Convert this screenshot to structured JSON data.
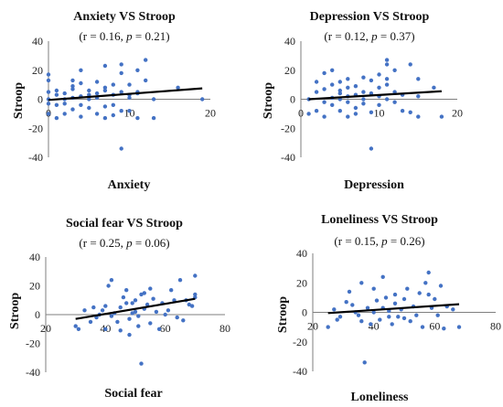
{
  "chart_data": [
    {
      "type": "scatter",
      "title": "Anxiety VS Stroop",
      "subtitle": "(r = 0.16, p = 0.21)",
      "xlabel": "Anxiety",
      "ylabel": "Stroop",
      "xlim": [
        0,
        20
      ],
      "ylim": [
        -40,
        40
      ],
      "xticks": [
        0,
        10,
        20
      ],
      "yticks": [
        -40,
        -20,
        0,
        20,
        40
      ],
      "trendline": {
        "x": [
          0,
          19
        ],
        "y": [
          -0.5,
          7.5
        ]
      },
      "points": [
        [
          0,
          0
        ],
        [
          0,
          17
        ],
        [
          0,
          13
        ],
        [
          0,
          5
        ],
        [
          0,
          -3
        ],
        [
          0,
          -10
        ],
        [
          1,
          6
        ],
        [
          1,
          3
        ],
        [
          1,
          -4
        ],
        [
          1,
          -13
        ],
        [
          2,
          4
        ],
        [
          2,
          0
        ],
        [
          2,
          -10
        ],
        [
          2,
          -3
        ],
        [
          3,
          13
        ],
        [
          3,
          7
        ],
        [
          3,
          1
        ],
        [
          3,
          -7
        ],
        [
          3,
          9
        ],
        [
          4,
          20
        ],
        [
          4,
          11
        ],
        [
          4,
          2
        ],
        [
          4,
          -4
        ],
        [
          4,
          -12
        ],
        [
          5,
          6
        ],
        [
          5,
          0
        ],
        [
          5,
          3
        ],
        [
          5,
          -6
        ],
        [
          6,
          4
        ],
        [
          6,
          1
        ],
        [
          6,
          -10
        ],
        [
          6,
          12
        ],
        [
          7,
          23
        ],
        [
          7,
          6
        ],
        [
          7,
          -5
        ],
        [
          7,
          -13
        ],
        [
          7,
          8
        ],
        [
          8,
          -11
        ],
        [
          8,
          3
        ],
        [
          8,
          10
        ],
        [
          8,
          -4
        ],
        [
          9,
          24
        ],
        [
          9,
          18
        ],
        [
          9,
          5
        ],
        [
          9,
          -34
        ],
        [
          9,
          -8
        ],
        [
          10,
          -8
        ],
        [
          10,
          3
        ],
        [
          10,
          10
        ],
        [
          10,
          1
        ],
        [
          11,
          20
        ],
        [
          11,
          5
        ],
        [
          11,
          -13
        ],
        [
          11,
          4
        ],
        [
          12,
          27
        ],
        [
          12,
          13
        ],
        [
          13,
          -13
        ],
        [
          13,
          0
        ],
        [
          16,
          8
        ],
        [
          19,
          0
        ]
      ]
    },
    {
      "type": "scatter",
      "title": "Depression VS Stroop",
      "subtitle": "(r = 0.12, p = 0.37)",
      "xlabel": "Depression",
      "ylabel": "Stroop",
      "xlim": [
        0,
        20
      ],
      "ylim": [
        -40,
        40
      ],
      "xticks": [
        0,
        10,
        20
      ],
      "yticks": [
        -40,
        -20,
        0,
        20,
        40
      ],
      "trendline": {
        "x": [
          1,
          18
        ],
        "y": [
          0,
          5.5
        ]
      },
      "points": [
        [
          1,
          -10
        ],
        [
          1,
          0
        ],
        [
          2,
          5
        ],
        [
          2,
          -8
        ],
        [
          2,
          12
        ],
        [
          3,
          18
        ],
        [
          3,
          7
        ],
        [
          3,
          -2
        ],
        [
          3,
          -12
        ],
        [
          4,
          20
        ],
        [
          4,
          10
        ],
        [
          4,
          1
        ],
        [
          4,
          -4
        ],
        [
          5,
          12
        ],
        [
          5,
          4
        ],
        [
          5,
          0
        ],
        [
          5,
          -8
        ],
        [
          5,
          6
        ],
        [
          6,
          14
        ],
        [
          6,
          2
        ],
        [
          6,
          -2
        ],
        [
          6,
          -12
        ],
        [
          6,
          8
        ],
        [
          7,
          9
        ],
        [
          7,
          3
        ],
        [
          7,
          -6
        ],
        [
          7,
          -10
        ],
        [
          8,
          15
        ],
        [
          8,
          5
        ],
        [
          8,
          0
        ],
        [
          8,
          -3
        ],
        [
          9,
          -34
        ],
        [
          9,
          13
        ],
        [
          9,
          4
        ],
        [
          9,
          -9
        ],
        [
          10,
          17
        ],
        [
          10,
          8
        ],
        [
          10,
          2
        ],
        [
          10,
          -4
        ],
        [
          11,
          27
        ],
        [
          11,
          24
        ],
        [
          11,
          14
        ],
        [
          11,
          10
        ],
        [
          11,
          0
        ],
        [
          12,
          5
        ],
        [
          12,
          -2
        ],
        [
          13,
          3
        ],
        [
          13,
          -8
        ],
        [
          14,
          24
        ],
        [
          14,
          -9
        ],
        [
          15,
          14
        ],
        [
          15,
          -12
        ],
        [
          15,
          2
        ],
        [
          17,
          8
        ],
        [
          18,
          -12
        ],
        [
          12,
          20
        ]
      ]
    },
    {
      "type": "scatter",
      "title": "Social fear VS Stroop",
      "subtitle": "(r = 0.25, p = 0.06)",
      "xlabel": "Social fear",
      "ylabel": "Stroop",
      "xlim": [
        20,
        80
      ],
      "ylim": [
        -40,
        40
      ],
      "xticks": [
        20,
        40,
        60,
        80
      ],
      "yticks": [
        -40,
        -20,
        0,
        20,
        40
      ],
      "trendline": {
        "x": [
          30,
          70
        ],
        "y": [
          -3,
          11
        ]
      },
      "points": [
        [
          30,
          -8
        ],
        [
          31,
          -10
        ],
        [
          33,
          3
        ],
        [
          35,
          -5
        ],
        [
          36,
          5
        ],
        [
          37,
          -2
        ],
        [
          38,
          0
        ],
        [
          39,
          3
        ],
        [
          40,
          -10
        ],
        [
          40,
          6
        ],
        [
          41,
          20
        ],
        [
          42,
          24
        ],
        [
          42,
          -1
        ],
        [
          43,
          1
        ],
        [
          44,
          -5
        ],
        [
          45,
          5
        ],
        [
          45,
          -11
        ],
        [
          46,
          12
        ],
        [
          47,
          8
        ],
        [
          47,
          17
        ],
        [
          48,
          -3
        ],
        [
          48,
          -14
        ],
        [
          49,
          8
        ],
        [
          49,
          1
        ],
        [
          50,
          2
        ],
        [
          50,
          10
        ],
        [
          51,
          -1
        ],
        [
          51,
          -8
        ],
        [
          52,
          -34
        ],
        [
          52,
          14
        ],
        [
          53,
          4
        ],
        [
          53,
          15
        ],
        [
          54,
          7
        ],
        [
          55,
          -6
        ],
        [
          55,
          18
        ],
        [
          56,
          11
        ],
        [
          57,
          2
        ],
        [
          58,
          -10
        ],
        [
          59,
          8
        ],
        [
          60,
          0
        ],
        [
          61,
          3
        ],
        [
          62,
          17
        ],
        [
          63,
          10
        ],
        [
          64,
          -2
        ],
        [
          65,
          24
        ],
        [
          66,
          -4
        ],
        [
          67,
          10
        ],
        [
          68,
          7
        ],
        [
          69,
          6
        ],
        [
          70,
          27
        ],
        [
          70,
          12
        ],
        [
          70,
          14
        ]
      ]
    },
    {
      "type": "scatter",
      "title": "Loneliness VS Stroop",
      "subtitle": "(r = 0.15, p = 0.26)",
      "xlabel": "Loneliness",
      "ylabel": "Stroop",
      "xlim": [
        20,
        80
      ],
      "ylim": [
        -40,
        40
      ],
      "xticks": [
        20,
        40,
        60,
        80
      ],
      "yticks": [
        -40,
        -20,
        0,
        20,
        40
      ],
      "trendline": {
        "x": [
          25,
          68
        ],
        "y": [
          -0.5,
          5.5
        ]
      },
      "points": [
        [
          25,
          -10
        ],
        [
          27,
          2
        ],
        [
          28,
          -5
        ],
        [
          29,
          -3
        ],
        [
          31,
          7
        ],
        [
          32,
          14
        ],
        [
          33,
          5
        ],
        [
          34,
          0
        ],
        [
          35,
          -2
        ],
        [
          36,
          20
        ],
        [
          36,
          -6
        ],
        [
          37,
          -34
        ],
        [
          38,
          3
        ],
        [
          39,
          -8
        ],
        [
          40,
          16
        ],
        [
          40,
          0
        ],
        [
          41,
          8
        ],
        [
          42,
          -5
        ],
        [
          43,
          24
        ],
        [
          43,
          3
        ],
        [
          44,
          10
        ],
        [
          45,
          1
        ],
        [
          45,
          -3
        ],
        [
          46,
          -8
        ],
        [
          47,
          12
        ],
        [
          47,
          6
        ],
        [
          48,
          -3
        ],
        [
          49,
          2
        ],
        [
          50,
          -4
        ],
        [
          50,
          9
        ],
        [
          51,
          16
        ],
        [
          52,
          -6
        ],
        [
          53,
          4
        ],
        [
          54,
          -2
        ],
        [
          55,
          13
        ],
        [
          56,
          -10
        ],
        [
          57,
          20
        ],
        [
          58,
          27
        ],
        [
          58,
          12
        ],
        [
          59,
          3
        ],
        [
          60,
          9
        ],
        [
          61,
          -2
        ],
        [
          62,
          18
        ],
        [
          63,
          -11
        ],
        [
          64,
          4
        ],
        [
          66,
          2
        ],
        [
          68,
          -10
        ]
      ]
    }
  ]
}
